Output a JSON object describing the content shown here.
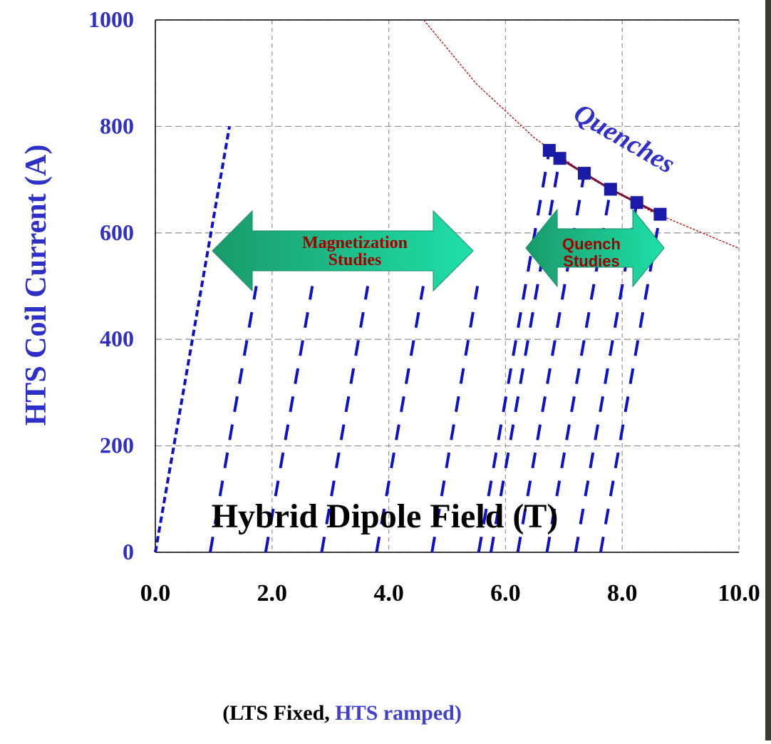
{
  "chart_data": {
    "type": "line",
    "xlabel": "Hybrid Dipole Field (T)",
    "ylabel": "HTS Coil Current (A)",
    "xlim": [
      0,
      10
    ],
    "ylim": [
      0,
      1000
    ],
    "xticks": [
      {
        "value": 0,
        "label": "0.0"
      },
      {
        "value": 2,
        "label": "2.0"
      },
      {
        "value": 4,
        "label": "4.0"
      },
      {
        "value": 6,
        "label": "6.0"
      },
      {
        "value": 8,
        "label": "8.0"
      },
      {
        "value": 10,
        "label": "10.0"
      }
    ],
    "yticks": [
      0,
      200,
      400,
      600,
      800,
      1000
    ],
    "grid": true,
    "line_color": "#1010c8",
    "lines": [
      {
        "x": [
          0,
          1.27
        ],
        "y": [
          0,
          800
        ]
      },
      {
        "x": [
          0.94,
          1.73
        ],
        "y": [
          0,
          500
        ]
      },
      {
        "x": [
          1.89,
          2.69
        ],
        "y": [
          0,
          500
        ]
      },
      {
        "x": [
          2.85,
          3.64
        ],
        "y": [
          0,
          500
        ]
      },
      {
        "x": [
          3.79,
          4.59
        ],
        "y": [
          0,
          500
        ]
      },
      {
        "x": [
          4.74,
          5.52
        ],
        "y": [
          0,
          500
        ]
      },
      {
        "x": [
          5.54,
          6.75
        ],
        "y": [
          0,
          755
        ]
      },
      {
        "x": [
          5.75,
          6.93
        ],
        "y": [
          0,
          740
        ]
      },
      {
        "x": [
          6.21,
          7.35
        ],
        "y": [
          0,
          712
        ]
      },
      {
        "x": [
          6.71,
          7.8
        ],
        "y": [
          0,
          682
        ]
      },
      {
        "x": [
          7.2,
          8.25
        ],
        "y": [
          0,
          657
        ]
      },
      {
        "x": [
          7.63,
          8.65
        ],
        "y": [
          0,
          635
        ]
      }
    ],
    "quench_points": {
      "x": [
        6.75,
        6.93,
        7.35,
        7.8,
        8.25,
        8.65
      ],
      "y": [
        755,
        740,
        712,
        682,
        657,
        635
      ],
      "color": "#1a1aa8"
    },
    "limit_curve": {
      "x": [
        4.6,
        5.5,
        6.5,
        7.5,
        8.5,
        10
      ],
      "y": [
        1000,
        880,
        778,
        700,
        640,
        571
      ],
      "color": "#c00000"
    },
    "annotations": {
      "quenches": "Quenches",
      "magnetization": [
        "Magnetization",
        "Studies"
      ],
      "quench_studies": [
        "Quench",
        "Studies"
      ]
    },
    "footnote": [
      "(LTS Fixed, ",
      "HTS ramped)"
    ]
  }
}
